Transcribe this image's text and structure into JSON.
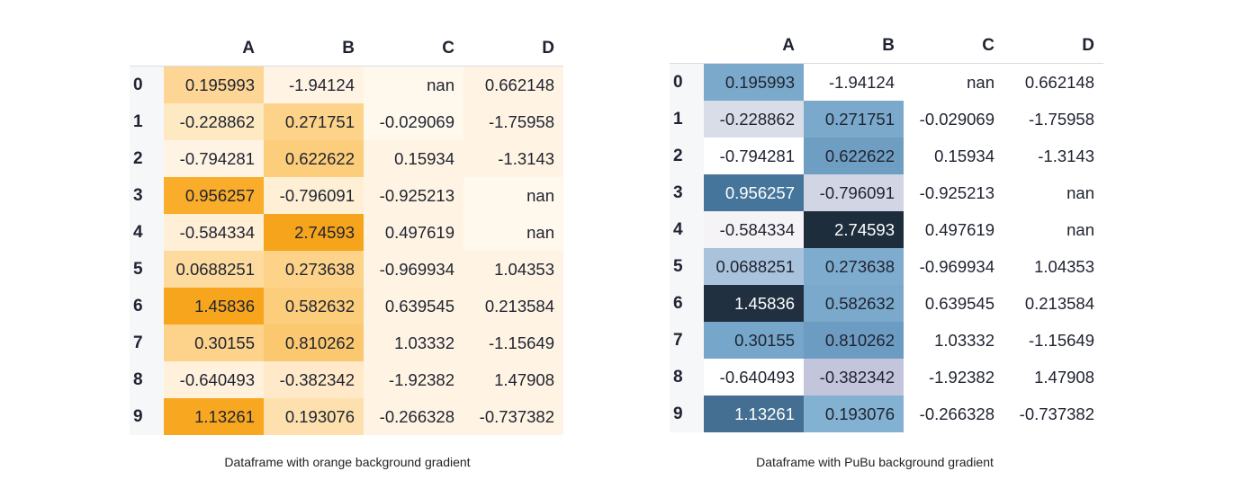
{
  "left": {
    "columns": [
      "A",
      "B",
      "C",
      "D"
    ],
    "index": [
      "0",
      "1",
      "2",
      "3",
      "4",
      "5",
      "6",
      "7",
      "8",
      "9"
    ],
    "cells": [
      [
        "0.195993",
        "-1.94124",
        "nan",
        "0.662148"
      ],
      [
        "-0.228862",
        "0.271751",
        "-0.029069",
        "-1.75958"
      ],
      [
        "-0.794281",
        "0.622622",
        "0.15934",
        "-1.3143"
      ],
      [
        "0.956257",
        "-0.796091",
        "-0.925213",
        "nan"
      ],
      [
        "-0.584334",
        "2.74593",
        "0.497619",
        "nan"
      ],
      [
        "0.0688251",
        "0.273638",
        "-0.969934",
        "1.04353"
      ],
      [
        "1.45836",
        "0.582632",
        "0.639545",
        "0.213584"
      ],
      [
        "0.30155",
        "0.810262",
        "1.03332",
        "-1.15649"
      ],
      [
        "-0.640493",
        "-0.382342",
        "-1.92382",
        "1.47908"
      ],
      [
        "1.13261",
        "0.193076",
        "-0.266328",
        "-0.737382"
      ]
    ],
    "colors": [
      [
        "#fdd594",
        "#fff4e3",
        "#fff8ec",
        "#fff4e3"
      ],
      [
        "#fde9c2",
        "#fcd388",
        "#fff8ec",
        "#fff4e3"
      ],
      [
        "#fff4e3",
        "#fccd7a",
        "#fff4e3",
        "#fff4e3"
      ],
      [
        "#f9ad2a",
        "#ffefd5",
        "#fff4e3",
        "#fff8ec"
      ],
      [
        "#feefd6",
        "#f6a41c",
        "#fff4e3",
        "#fff8ec"
      ],
      [
        "#fdda9e",
        "#fcd388",
        "#fff4e3",
        "#fff4e3"
      ],
      [
        "#f7a51d",
        "#fccd7a",
        "#fff4e3",
        "#fff4e3"
      ],
      [
        "#fdd28a",
        "#fbc870",
        "#fff4e3",
        "#fff4e3"
      ],
      [
        "#fff1dc",
        "#ffe9c8",
        "#fff4e3",
        "#fff4e3"
      ],
      [
        "#f8a820",
        "#fde0ae",
        "#fff4e3",
        "#fff4e3"
      ]
    ],
    "caption": "Dataframe with orange background gradient"
  },
  "right": {
    "columns": [
      "A",
      "B",
      "C",
      "D"
    ],
    "index": [
      "0",
      "1",
      "2",
      "3",
      "4",
      "5",
      "6",
      "7",
      "8",
      "9"
    ],
    "cells": [
      [
        "0.195993",
        "-1.94124",
        "nan",
        "0.662148"
      ],
      [
        "-0.228862",
        "0.271751",
        "-0.029069",
        "-1.75958"
      ],
      [
        "-0.794281",
        "0.622622",
        "0.15934",
        "-1.3143"
      ],
      [
        "0.956257",
        "-0.796091",
        "-0.925213",
        "nan"
      ],
      [
        "-0.584334",
        "2.74593",
        "0.497619",
        "nan"
      ],
      [
        "0.0688251",
        "0.273638",
        "-0.969934",
        "1.04353"
      ],
      [
        "1.45836",
        "0.582632",
        "0.639545",
        "0.213584"
      ],
      [
        "0.30155",
        "0.810262",
        "1.03332",
        "-1.15649"
      ],
      [
        "-0.640493",
        "-0.382342",
        "-1.92382",
        "1.47908"
      ],
      [
        "1.13261",
        "0.193076",
        "-0.266328",
        "-0.737382"
      ]
    ],
    "colors": [
      [
        "#7aa9cb",
        "#ffffff",
        "#ffffff",
        "#ffffff"
      ],
      [
        "#d8dde8",
        "#7aa9cb",
        "#ffffff",
        "#ffffff"
      ],
      [
        "#ffffff",
        "#6f9ec3",
        "#ffffff",
        "#ffffff"
      ],
      [
        "#46759b",
        "#d2d5e3",
        "#ffffff",
        "#ffffff"
      ],
      [
        "#f6f3f7",
        "#1e2d3c",
        "#ffffff",
        "#ffffff"
      ],
      [
        "#a9c3dc",
        "#7eacce",
        "#ffffff",
        "#ffffff"
      ],
      [
        "#203040",
        "#7aa9cb",
        "#ffffff",
        "#ffffff"
      ],
      [
        "#76a6c9",
        "#6d9cc2",
        "#ffffff",
        "#ffffff"
      ],
      [
        "#ffffff",
        "#c3c5dc",
        "#ffffff",
        "#ffffff"
      ],
      [
        "#456f92",
        "#83b1d2",
        "#ffffff",
        "#ffffff"
      ]
    ],
    "textColors": [
      [
        "#1f2330",
        "#1f2330",
        "#1f2330",
        "#1f2330"
      ],
      [
        "#1f2330",
        "#1f2330",
        "#1f2330",
        "#1f2330"
      ],
      [
        "#1f2330",
        "#1f2330",
        "#1f2330",
        "#1f2330"
      ],
      [
        "#ffffff",
        "#1f2330",
        "#1f2330",
        "#1f2330"
      ],
      [
        "#1f2330",
        "#ffffff",
        "#1f2330",
        "#1f2330"
      ],
      [
        "#1f2330",
        "#1f2330",
        "#1f2330",
        "#1f2330"
      ],
      [
        "#ffffff",
        "#1f2330",
        "#1f2330",
        "#1f2330"
      ],
      [
        "#1f2330",
        "#1f2330",
        "#1f2330",
        "#1f2330"
      ],
      [
        "#1f2330",
        "#1f2330",
        "#1f2330",
        "#1f2330"
      ],
      [
        "#ffffff",
        "#1f2330",
        "#1f2330",
        "#1f2330"
      ]
    ],
    "caption": "Dataframe with PuBu background gradient"
  }
}
